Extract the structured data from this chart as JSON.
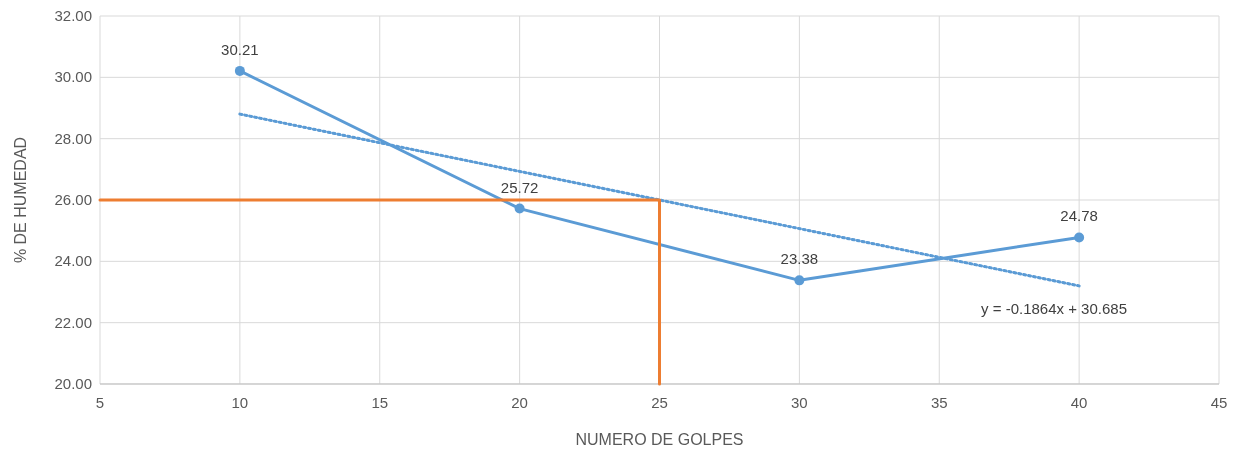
{
  "chart_data": {
    "type": "line",
    "xlabel": "NUMERO DE GOLPES",
    "ylabel": "% DE HUMEDAD",
    "xlim": [
      5,
      45
    ],
    "xticks": [
      5,
      10,
      15,
      20,
      25,
      30,
      35,
      40,
      45
    ],
    "ylim": [
      20,
      32
    ],
    "yticks": [
      {
        "value": 20,
        "label": "20.00"
      },
      {
        "value": 22,
        "label": "22.00"
      },
      {
        "value": 24,
        "label": "24.00"
      },
      {
        "value": 26,
        "label": "26.00"
      },
      {
        "value": 28,
        "label": "28.00"
      },
      {
        "value": 30,
        "label": "30.00"
      },
      {
        "value": 32,
        "label": "32.00"
      }
    ],
    "grid": true,
    "marker": "circle",
    "line_style": "solid",
    "series": [
      {
        "x": [
          10,
          20,
          30,
          40
        ],
        "values": [
          30.21,
          25.72,
          23.38,
          24.78
        ],
        "value_labels": [
          "30.21",
          "25.72",
          "23.38",
          "24.78"
        ],
        "color": "#5b9bd5"
      },
      {
        "type": "line",
        "x": [
          10,
          40
        ],
        "values": [
          28.8,
          23.2
        ],
        "color": "#5b9bd5",
        "line_style": "dotted",
        "marker": "none"
      },
      {
        "type": "line",
        "x": [
          5,
          25,
          25
        ],
        "values": [
          26,
          26,
          20
        ],
        "color": "#ed7d31",
        "marker": "none"
      }
    ],
    "annotations": [
      "y = -0.1864x + 30.685"
    ]
  }
}
